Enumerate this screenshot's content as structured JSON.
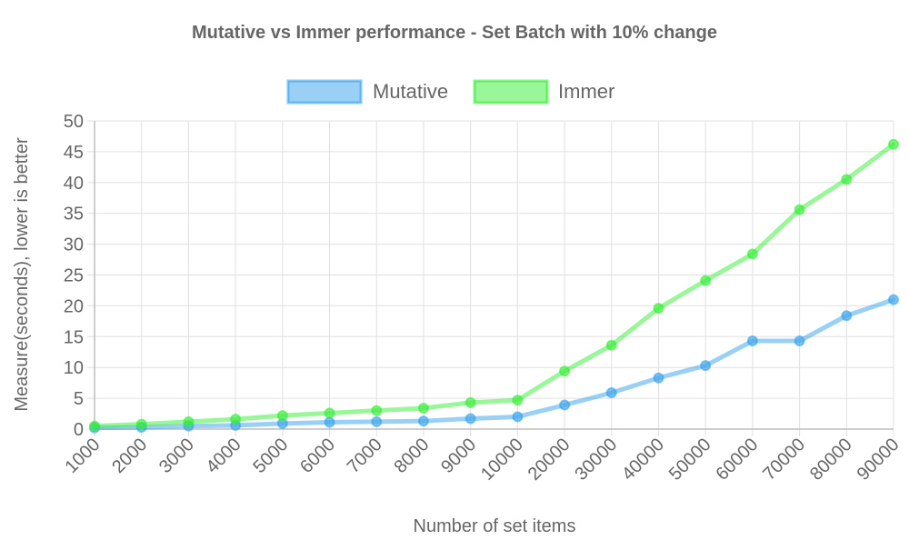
{
  "chart_data": {
    "type": "line",
    "title": "Mutative vs Immer performance - Set Batch with 10% change",
    "xlabel": "Number of set items",
    "ylabel": "Measure(seconds), lower is better",
    "categories": [
      "1000",
      "2000",
      "3000",
      "4000",
      "5000",
      "6000",
      "7000",
      "8000",
      "9000",
      "10000",
      "20000",
      "30000",
      "40000",
      "50000",
      "60000",
      "70000",
      "80000",
      "90000"
    ],
    "ylim": [
      0,
      50
    ],
    "yticks": [
      "0",
      "5",
      "10",
      "15",
      "20",
      "25",
      "30",
      "35",
      "40",
      "45",
      "50"
    ],
    "grid": true,
    "legend_position": "top",
    "series": [
      {
        "name": "Mutative",
        "color": "#36a2eb",
        "values": [
          0.2,
          0.3,
          0.5,
          0.6,
          0.9,
          1.1,
          1.2,
          1.3,
          1.7,
          2.0,
          3.9,
          5.9,
          8.3,
          10.3,
          14.3,
          14.3,
          18.4,
          21.0
        ]
      },
      {
        "name": "Immer",
        "color": "#33ee33",
        "values": [
          0.5,
          0.8,
          1.2,
          1.6,
          2.2,
          2.6,
          3.0,
          3.4,
          4.3,
          4.7,
          9.4,
          13.6,
          19.6,
          24.1,
          28.4,
          35.6,
          40.5,
          46.2
        ]
      }
    ]
  }
}
